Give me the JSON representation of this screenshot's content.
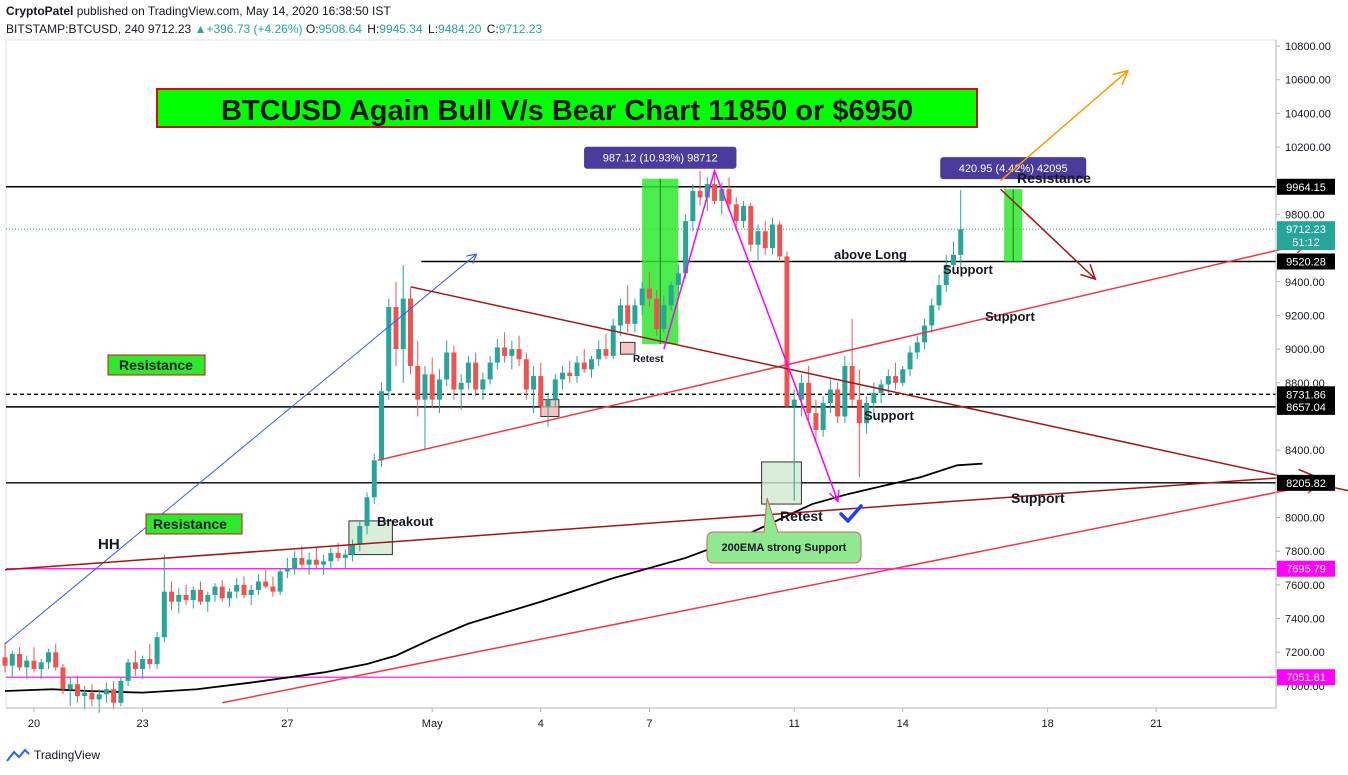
{
  "header": {
    "author": "CryptoPatel",
    "published": "published on TradingView.com, May 14, 2020 16:38:50 IST",
    "symbol": "BITSTAMP:BTCUSD, 240",
    "last": "9712.23",
    "change": "+396.73 (+4.26%)",
    "open_label": "O:",
    "open": "9508.64",
    "high_label": "H:",
    "high": "9945.34",
    "low_label": "L:",
    "low": "9484.20",
    "close_label": "C:",
    "close": "9712.23"
  },
  "footer": {
    "brand": "TradingView"
  },
  "colors": {
    "up": "#26a69a",
    "down": "#ef5350",
    "pink": "#ff00ff",
    "red": "#f23645",
    "darkred": "#a31515",
    "blue": "#3d5afe",
    "orange": "#ff9800",
    "green_box": "#2ee82e",
    "label_bg": "#4a3b9c"
  },
  "chart_data": {
    "type": "candlestick",
    "ylim": [
      6880,
      10880
    ],
    "y_ticks": [
      "10800.00",
      "10600.00",
      "10400.00",
      "10200.00",
      "9800.00",
      "9400.00",
      "9200.00",
      "9000.00",
      "8800.00",
      "8400.00",
      "8000.00",
      "7800.00",
      "7600.00",
      "7400.00",
      "7200.00",
      "7000.00"
    ],
    "x_ticks": [
      {
        "label": "20",
        "day": 0
      },
      {
        "label": "23",
        "day": 3
      },
      {
        "label": "27",
        "day": 7
      },
      {
        "label": "May",
        "day": 11
      },
      {
        "label": "4",
        "day": 14
      },
      {
        "label": "7",
        "day": 17
      },
      {
        "label": "11",
        "day": 21
      },
      {
        "label": "14",
        "day": 24
      },
      {
        "label": "18",
        "day": 28
      },
      {
        "label": "21",
        "day": 31
      }
    ],
    "price_labels": [
      {
        "value": 9964.15,
        "text": "9964.15",
        "style": "dark"
      },
      {
        "value": 9712.23,
        "text": "9712.23",
        "style": "teal"
      },
      {
        "value": 9636,
        "text": "51:12",
        "style": "teal"
      },
      {
        "value": 9520.28,
        "text": "9520.28",
        "style": "dark"
      },
      {
        "value": 8731.86,
        "text": "8731.86",
        "style": "dark"
      },
      {
        "value": 8657.04,
        "text": "8657.04",
        "style": "dark"
      },
      {
        "value": 8205.82,
        "text": "8205.82",
        "style": "dark"
      },
      {
        "value": 7695.79,
        "text": "7695.79",
        "style": "pink"
      },
      {
        "value": 7051.81,
        "text": "7051.81",
        "style": "pink"
      }
    ],
    "hlines": [
      {
        "value": 9964.15,
        "color": "#000000",
        "style": "solid"
      },
      {
        "value": 9712.23,
        "color": "#26a69a",
        "style": "dotted"
      },
      {
        "value": 9520.28,
        "color": "#000000",
        "style": "solid",
        "from_day": 10.7
      },
      {
        "value": 8731.86,
        "color": "#000000",
        "style": "dashed"
      },
      {
        "value": 8657.04,
        "color": "#000000",
        "style": "solid"
      },
      {
        "value": 8205.82,
        "color": "#000000",
        "style": "solid"
      },
      {
        "value": 7695.79,
        "color": "#ff00ff",
        "style": "solid"
      },
      {
        "value": 7051.81,
        "color": "#ff00ff",
        "style": "solid"
      }
    ],
    "candles": [
      [
        -0.8,
        7170,
        7260,
        7080,
        7120
      ],
      [
        -0.6,
        7120,
        7210,
        7050,
        7190
      ],
      [
        -0.4,
        7190,
        7230,
        7090,
        7110
      ],
      [
        -0.2,
        7110,
        7180,
        7040,
        7150
      ],
      [
        0,
        7150,
        7230,
        7080,
        7100
      ],
      [
        0.2,
        7100,
        7160,
        7040,
        7140
      ],
      [
        0.4,
        7140,
        7220,
        7100,
        7200
      ],
      [
        0.6,
        7200,
        7250,
        7090,
        7110
      ],
      [
        0.8,
        7110,
        7130,
        6950,
        6980
      ],
      [
        1,
        6980,
        7050,
        6880,
        7010
      ],
      [
        1.2,
        7010,
        7060,
        6900,
        6940
      ],
      [
        1.4,
        6940,
        7000,
        6860,
        6960
      ],
      [
        1.6,
        6960,
        7010,
        6880,
        6920
      ],
      [
        1.8,
        6920,
        6980,
        6840,
        6950
      ],
      [
        2,
        6950,
        7020,
        6900,
        6980
      ],
      [
        2.2,
        6980,
        7030,
        6860,
        6900
      ],
      [
        2.4,
        6900,
        7050,
        6880,
        7030
      ],
      [
        2.6,
        7030,
        7160,
        7000,
        7140
      ],
      [
        2.8,
        7140,
        7210,
        7060,
        7100
      ],
      [
        3,
        7100,
        7180,
        7040,
        7160
      ],
      [
        3.2,
        7160,
        7250,
        7100,
        7130
      ],
      [
        3.4,
        7130,
        7320,
        7100,
        7290
      ],
      [
        3.6,
        7290,
        7780,
        7260,
        7560
      ],
      [
        3.8,
        7560,
        7620,
        7450,
        7500
      ],
      [
        4,
        7500,
        7580,
        7430,
        7540
      ],
      [
        4.2,
        7540,
        7600,
        7480,
        7510
      ],
      [
        4.4,
        7510,
        7590,
        7460,
        7570
      ],
      [
        4.6,
        7570,
        7620,
        7480,
        7500
      ],
      [
        4.8,
        7500,
        7560,
        7440,
        7540
      ],
      [
        5,
        7540,
        7610,
        7500,
        7590
      ],
      [
        5.2,
        7590,
        7630,
        7500,
        7520
      ],
      [
        5.4,
        7520,
        7580,
        7470,
        7560
      ],
      [
        5.6,
        7560,
        7640,
        7520,
        7600
      ],
      [
        5.8,
        7600,
        7650,
        7520,
        7540
      ],
      [
        6,
        7540,
        7600,
        7480,
        7570
      ],
      [
        6.2,
        7570,
        7660,
        7540,
        7620
      ],
      [
        6.4,
        7620,
        7700,
        7580,
        7590
      ],
      [
        6.6,
        7590,
        7650,
        7530,
        7560
      ],
      [
        6.8,
        7560,
        7700,
        7540,
        7680
      ],
      [
        7,
        7680,
        7760,
        7640,
        7700
      ],
      [
        7.2,
        7700,
        7800,
        7660,
        7760
      ],
      [
        7.4,
        7760,
        7830,
        7700,
        7720
      ],
      [
        7.6,
        7720,
        7790,
        7660,
        7750
      ],
      [
        7.8,
        7750,
        7820,
        7700,
        7720
      ],
      [
        8,
        7720,
        7780,
        7660,
        7740
      ],
      [
        8.2,
        7740,
        7820,
        7700,
        7790
      ],
      [
        8.4,
        7790,
        7850,
        7740,
        7760
      ],
      [
        8.6,
        7760,
        7810,
        7700,
        7780
      ],
      [
        8.8,
        7780,
        7870,
        7740,
        7840
      ],
      [
        9,
        7840,
        7980,
        7800,
        7950
      ],
      [
        9.2,
        7950,
        8150,
        7900,
        8120
      ],
      [
        9.4,
        8120,
        8380,
        8080,
        8340
      ],
      [
        9.6,
        8340,
        8800,
        8300,
        8750
      ],
      [
        9.8,
        8750,
        9300,
        8700,
        9250
      ],
      [
        10,
        9250,
        9400,
        8900,
        9000
      ],
      [
        10.2,
        9000,
        9500,
        8800,
        9300
      ],
      [
        10.4,
        9300,
        9360,
        8850,
        8900
      ],
      [
        10.6,
        8900,
        9050,
        8600,
        8700
      ],
      [
        10.8,
        8700,
        8900,
        8400,
        8850
      ],
      [
        11,
        8850,
        8950,
        8650,
        8700
      ],
      [
        11.2,
        8700,
        8880,
        8620,
        8820
      ],
      [
        11.4,
        8820,
        9050,
        8780,
        8980
      ],
      [
        11.6,
        8980,
        9020,
        8700,
        8760
      ],
      [
        11.8,
        8760,
        8850,
        8640,
        8800
      ],
      [
        12,
        8800,
        8960,
        8760,
        8920
      ],
      [
        12.2,
        8920,
        8980,
        8720,
        8760
      ],
      [
        12.4,
        8760,
        8860,
        8700,
        8820
      ],
      [
        12.6,
        8820,
        8960,
        8790,
        8920
      ],
      [
        12.8,
        8920,
        9060,
        8880,
        9010
      ],
      [
        13,
        9010,
        9100,
        8920,
        8960
      ],
      [
        13.2,
        8960,
        9050,
        8880,
        9000
      ],
      [
        13.4,
        9000,
        9080,
        8900,
        8940
      ],
      [
        13.6,
        8940,
        8980,
        8700,
        8760
      ],
      [
        13.8,
        8760,
        8900,
        8620,
        8840
      ],
      [
        14,
        8840,
        8920,
        8600,
        8660
      ],
      [
        14.2,
        8660,
        8740,
        8540,
        8700
      ],
      [
        14.4,
        8700,
        8850,
        8660,
        8820
      ],
      [
        14.6,
        8820,
        8900,
        8760,
        8860
      ],
      [
        14.8,
        8860,
        8930,
        8800,
        8840
      ],
      [
        15,
        8840,
        8960,
        8800,
        8920
      ],
      [
        15.2,
        8920,
        9000,
        8860,
        8880
      ],
      [
        15.4,
        8880,
        8960,
        8830,
        8940
      ],
      [
        15.6,
        8940,
        9050,
        8900,
        9000
      ],
      [
        15.8,
        9000,
        9090,
        8940,
        8960
      ],
      [
        16,
        8960,
        9180,
        8940,
        9140
      ],
      [
        16.2,
        9140,
        9300,
        9080,
        9260
      ],
      [
        16.4,
        9260,
        9380,
        9100,
        9150
      ],
      [
        16.6,
        9150,
        9300,
        9100,
        9260
      ],
      [
        16.8,
        9260,
        9400,
        9200,
        9360
      ],
      [
        17,
        9360,
        9460,
        9250,
        9300
      ],
      [
        17.2,
        9300,
        9350,
        9080,
        9120
      ],
      [
        17.4,
        9120,
        9320,
        9100,
        9260
      ],
      [
        17.6,
        9260,
        9400,
        9230,
        9380
      ],
      [
        17.8,
        9380,
        9500,
        9320,
        9450
      ],
      [
        18,
        9450,
        9800,
        9420,
        9760
      ],
      [
        18.2,
        9760,
        9980,
        9700,
        9940
      ],
      [
        18.4,
        9940,
        10060,
        9850,
        9900
      ],
      [
        18.6,
        9900,
        10020,
        9820,
        9980
      ],
      [
        18.8,
        9980,
        10050,
        9860,
        9880
      ],
      [
        19,
        9880,
        9990,
        9800,
        9950
      ],
      [
        19.2,
        9950,
        10020,
        9820,
        9860
      ],
      [
        19.4,
        9860,
        9900,
        9700,
        9760
      ],
      [
        19.6,
        9760,
        9880,
        9720,
        9850
      ],
      [
        19.8,
        9850,
        9870,
        9580,
        9620
      ],
      [
        20,
        9620,
        9740,
        9520,
        9700
      ],
      [
        20.2,
        9700,
        9760,
        9560,
        9600
      ],
      [
        20.4,
        9600,
        9780,
        9560,
        9740
      ],
      [
        20.6,
        9740,
        9760,
        9520,
        9550
      ],
      [
        20.8,
        9550,
        9580,
        8650,
        8660
      ],
      [
        21,
        8660,
        8760,
        8100,
        8700
      ],
      [
        21.2,
        8700,
        8850,
        8600,
        8800
      ],
      [
        21.4,
        8800,
        8900,
        8580,
        8620
      ],
      [
        21.6,
        8620,
        8700,
        8450,
        8520
      ],
      [
        21.8,
        8520,
        8720,
        8480,
        8680
      ],
      [
        22,
        8680,
        8820,
        8620,
        8760
      ],
      [
        22.2,
        8760,
        8800,
        8560,
        8600
      ],
      [
        22.4,
        8600,
        8960,
        8560,
        8900
      ],
      [
        22.6,
        8900,
        9180,
        8660,
        8700
      ],
      [
        22.8,
        8700,
        8880,
        8240,
        8560
      ],
      [
        23,
        8560,
        8720,
        8500,
        8680
      ],
      [
        23.2,
        8680,
        8800,
        8620,
        8740
      ],
      [
        23.4,
        8740,
        8820,
        8680,
        8790
      ],
      [
        23.6,
        8790,
        8880,
        8740,
        8840
      ],
      [
        23.8,
        8840,
        8920,
        8760,
        8800
      ],
      [
        24,
        8800,
        8900,
        8780,
        8880
      ],
      [
        24.2,
        8880,
        9020,
        8840,
        8980
      ],
      [
        24.4,
        8980,
        9080,
        8940,
        9040
      ],
      [
        24.6,
        9040,
        9180,
        9000,
        9140
      ],
      [
        24.8,
        9140,
        9300,
        9100,
        9260
      ],
      [
        25,
        9260,
        9440,
        9230,
        9380
      ],
      [
        25.2,
        9380,
        9560,
        9340,
        9500
      ],
      [
        25.4,
        9500,
        9640,
        9470,
        9560
      ],
      [
        25.6,
        9560,
        9945,
        9480,
        9712
      ]
    ],
    "trendlines": [
      {
        "p": [
          [
            -0.8,
            7250
          ],
          [
            12.2,
            9560
          ]
        ],
        "color": "#3d5afe",
        "width": 1,
        "arrow": true
      },
      {
        "p": [
          [
            9.5,
            8340
          ],
          [
            35.2,
            9630
          ]
        ],
        "color": "#f23645",
        "width": 1.5,
        "arrow": true
      },
      {
        "p": [
          [
            10.4,
            9370
          ],
          [
            38.0,
            8080
          ]
        ],
        "color": "#a31515",
        "width": 1.5,
        "arrow": true
      },
      {
        "p": [
          [
            -0.8,
            7690
          ],
          [
            35.3,
            8250
          ]
        ],
        "color": "#a31515",
        "width": 1.5,
        "arrow": true
      },
      {
        "p": [
          [
            5.2,
            6900
          ],
          [
            35.5,
            8200
          ]
        ],
        "color": "#f23645",
        "width": 1.5,
        "arrow": true
      },
      {
        "p": [
          [
            26.7,
            10000
          ],
          [
            30.2,
            10650
          ]
        ],
        "color": "#ff9800",
        "width": 1.5,
        "arrow": true
      },
      {
        "p": [
          [
            26.7,
            9950
          ],
          [
            29.3,
            9420
          ]
        ],
        "color": "#a31515",
        "width": 1.5,
        "arrow": true
      }
    ],
    "pink_path": [
      [
        17.4,
        9000
      ],
      [
        18.8,
        10060
      ],
      [
        21.0,
        8800
      ],
      [
        22.2,
        8100
      ]
    ],
    "ema200": [
      [
        -0.8,
        6970
      ],
      [
        0.5,
        6980
      ],
      [
        1.5,
        6970
      ],
      [
        3,
        6960
      ],
      [
        4.5,
        6980
      ],
      [
        6,
        7020
      ],
      [
        8,
        7080
      ],
      [
        9.2,
        7130
      ],
      [
        10,
        7180
      ],
      [
        11,
        7280
      ],
      [
        12,
        7370
      ],
      [
        14,
        7500
      ],
      [
        16,
        7640
      ],
      [
        18,
        7760
      ],
      [
        19.5,
        7880
      ],
      [
        20.5,
        7980
      ],
      [
        21.5,
        8080
      ],
      [
        22.5,
        8140
      ],
      [
        23.5,
        8190
      ],
      [
        24.5,
        8240
      ],
      [
        25.5,
        8310
      ],
      [
        26.2,
        8320
      ]
    ],
    "boxes": [
      {
        "x0": 16.8,
        "x1": 17.8,
        "y0": 9030,
        "y1": 10012,
        "fill": "#2ee82e",
        "text": "987.12 (10.93%) 98712"
      },
      {
        "x0": 26.8,
        "x1": 27.3,
        "y0": 9520,
        "y1": 9950,
        "fill": "#2ee82e",
        "text": "420.95 (4.42%) 42095"
      }
    ],
    "zones": [
      {
        "x0": 8.7,
        "x1": 9.9,
        "y0": 7780,
        "y1": 7980,
        "fill": "#cfe8cf",
        "stroke": "#333333"
      },
      {
        "x0": 14.0,
        "x1": 14.5,
        "y0": 8600,
        "y1": 8700,
        "fill": "#f4b8b8",
        "stroke": "#333333"
      },
      {
        "x0": 16.2,
        "x1": 16.6,
        "y0": 8970,
        "y1": 9040,
        "fill": "#f4b8b8",
        "stroke": "#333333"
      },
      {
        "x0": 20.1,
        "x1": 21.2,
        "y0": 8080,
        "y1": 8330,
        "fill": "#cfe8cf",
        "stroke": "#333333"
      }
    ],
    "title": "BTCUSD Again Bull V/s Bear Chart 11850 or $6950",
    "labels": {
      "resistance_top": "Resistance",
      "above_long": "above Long",
      "support_1": "Support",
      "support_2": "Support",
      "support_3": "Support",
      "support_4": "Support",
      "retest_small": "Retest",
      "retest": "Retest",
      "breakout": "Breakout",
      "hh": "HH",
      "res_box1": "Resistance",
      "res_box2": "Resistance",
      "ema_callout": "200EMA strong Support"
    }
  }
}
